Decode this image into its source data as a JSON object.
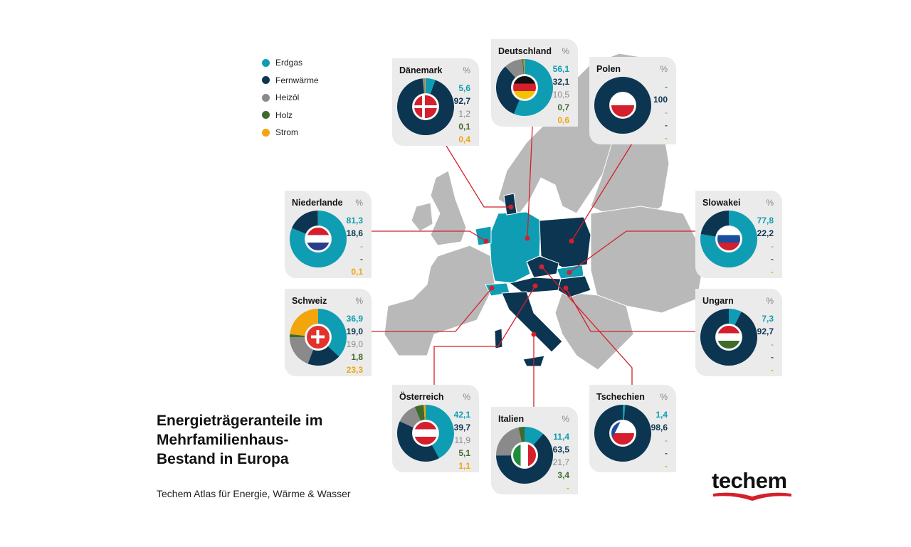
{
  "colors": {
    "Erdgas": "#0f9db3",
    "Fernwärme": "#0c3551",
    "Heizöl": "#8a8a8a",
    "Holz": "#3f6b2b",
    "Strom": "#f2a50c",
    "connector": "#d4202c",
    "map_grey": "#b9b9b9",
    "map_teal": "#0f9db3",
    "map_dark": "#0c3551"
  },
  "legend": [
    "Erdgas",
    "Fernwärme",
    "Heizöl",
    "Holz",
    "Strom"
  ],
  "title_lines": [
    "Energieträgeranteile im",
    "Mehrfamilienhaus-",
    "Bestand in Europa"
  ],
  "subtitle": "Techem Atlas für Energie, Wärme & Wasser",
  "logo_text": "techem",
  "chart_data": {
    "type": "pie",
    "variant": "donut",
    "unit": "%",
    "series_order": [
      "Erdgas",
      "Fernwärme",
      "Heizöl",
      "Holz",
      "Strom"
    ],
    "countries": [
      {
        "name": "Dänemark",
        "flag": "denmark-flag",
        "values": [
          5.6,
          92.7,
          1.2,
          0.1,
          0.4
        ]
      },
      {
        "name": "Deutschland",
        "flag": "germany-flag",
        "values": [
          56.1,
          32.1,
          10.5,
          0.7,
          0.6
        ]
      },
      {
        "name": "Polen",
        "flag": "poland-flag",
        "values": [
          null,
          100,
          null,
          null,
          null
        ]
      },
      {
        "name": "Niederlande",
        "flag": "netherlands-flag",
        "values": [
          81.3,
          18.6,
          null,
          null,
          0.1
        ]
      },
      {
        "name": "Slowakei",
        "flag": "slovakia-flag",
        "values": [
          77.8,
          22.2,
          null,
          null,
          null
        ]
      },
      {
        "name": "Schweiz",
        "flag": "switzerland-flag",
        "values": [
          36.9,
          19.0,
          19.0,
          1.8,
          23.3
        ]
      },
      {
        "name": "Ungarn",
        "flag": "hungary-flag",
        "values": [
          7.3,
          92.7,
          null,
          null,
          null
        ]
      },
      {
        "name": "Österreich",
        "flag": "austria-flag",
        "values": [
          42.1,
          39.7,
          11.9,
          5.1,
          1.1
        ]
      },
      {
        "name": "Italien",
        "flag": "italy-flag",
        "values": [
          11.4,
          63.5,
          21.7,
          3.4,
          null
        ]
      },
      {
        "name": "Tschechien",
        "flag": "czechia-flag",
        "values": [
          1.4,
          98.6,
          null,
          null,
          null
        ]
      }
    ]
  }
}
